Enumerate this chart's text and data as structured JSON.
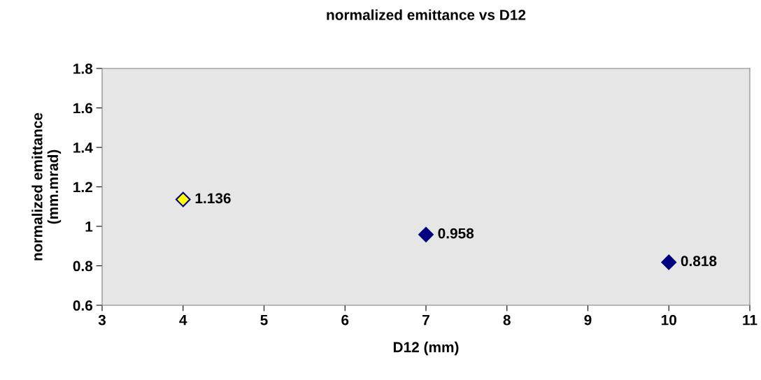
{
  "chart_data": {
    "type": "scatter",
    "title": "normalized emittance vs D12",
    "xlabel": "D12 (mm)",
    "ylabel": "normalized emittance\n(mm.mrad)",
    "x": [
      4,
      7,
      10
    ],
    "values": [
      1.136,
      0.958,
      0.818
    ],
    "colors": [
      "#ffff00",
      "#000080",
      "#000080"
    ],
    "marker": "diamond",
    "data_labels": true,
    "grid": false,
    "xlim": [
      3,
      11
    ],
    "xticks": [
      3,
      4,
      5,
      6,
      7,
      8,
      9,
      10,
      11
    ],
    "ylim": [
      0.6,
      1.8
    ],
    "yticks": [
      0.6,
      0.8,
      1,
      1.2,
      1.4,
      1.6,
      1.8
    ]
  }
}
